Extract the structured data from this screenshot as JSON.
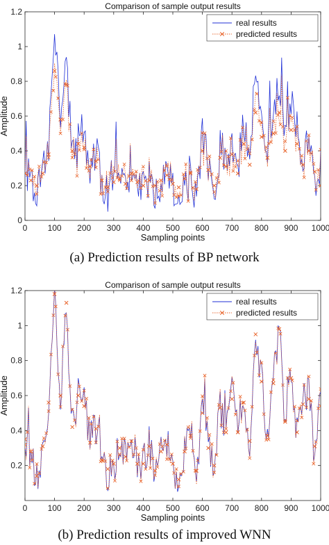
{
  "colors": {
    "real": "#1f2fd6",
    "predicted": "#e8632a",
    "axis": "#262626",
    "background": "#ffffff"
  },
  "chart_data": [
    {
      "type": "line",
      "title": "Comparison of sample output results",
      "xlabel": "Sampling points",
      "ylabel": "Amplitude",
      "xlim": [
        0,
        1000
      ],
      "ylim": [
        0,
        1.2
      ],
      "xticks": [
        0,
        100,
        200,
        300,
        400,
        500,
        600,
        700,
        800,
        900,
        1000
      ],
      "yticks": [
        0,
        0.2,
        0.4,
        0.6,
        0.8,
        1,
        1.2
      ],
      "grid": false,
      "legend_position": "top-right",
      "caption": "(a)  Prediction results of BP network",
      "series": [
        {
          "name": "real results",
          "style": "solid line",
          "color": "#1f2fd6",
          "x": [
            0,
            20,
            40,
            60,
            80,
            100,
            120,
            140,
            160,
            180,
            200,
            220,
            240,
            260,
            280,
            300,
            320,
            340,
            360,
            380,
            400,
            420,
            440,
            460,
            480,
            500,
            520,
            540,
            560,
            580,
            600,
            620,
            640,
            660,
            680,
            700,
            720,
            740,
            760,
            780,
            800,
            820,
            840,
            860,
            880,
            900,
            920,
            940,
            960,
            980,
            1000
          ],
          "y": [
            0.3,
            0.22,
            0.17,
            0.26,
            0.42,
            1.12,
            0.6,
            0.92,
            0.35,
            0.5,
            0.45,
            0.32,
            0.4,
            0.22,
            0.17,
            0.21,
            0.25,
            0.19,
            0.3,
            0.2,
            0.18,
            0.24,
            0.15,
            0.22,
            0.27,
            0.2,
            0.14,
            0.23,
            0.3,
            0.1,
            0.5,
            0.32,
            0.1,
            0.43,
            0.35,
            0.47,
            0.28,
            0.58,
            0.36,
            0.92,
            0.63,
            0.42,
            0.64,
            0.82,
            0.5,
            0.7,
            0.52,
            0.36,
            0.46,
            0.28,
            0.16
          ]
        },
        {
          "name": "predicted results",
          "style": "dotted line with x markers",
          "color": "#e8632a",
          "x": [
            0,
            20,
            40,
            60,
            80,
            100,
            120,
            140,
            160,
            180,
            200,
            220,
            240,
            260,
            280,
            300,
            320,
            340,
            360,
            380,
            400,
            420,
            440,
            460,
            480,
            500,
            520,
            540,
            560,
            580,
            600,
            620,
            640,
            660,
            680,
            700,
            720,
            740,
            760,
            780,
            800,
            820,
            840,
            860,
            880,
            900,
            920,
            940,
            960,
            980,
            1000
          ],
          "y": [
            0.27,
            0.23,
            0.2,
            0.27,
            0.38,
            0.86,
            0.58,
            0.78,
            0.4,
            0.44,
            0.42,
            0.31,
            0.34,
            0.23,
            0.19,
            0.22,
            0.24,
            0.21,
            0.27,
            0.22,
            0.2,
            0.23,
            0.2,
            0.23,
            0.26,
            0.21,
            0.19,
            0.24,
            0.27,
            0.18,
            0.4,
            0.29,
            0.2,
            0.36,
            0.31,
            0.38,
            0.27,
            0.44,
            0.32,
            0.62,
            0.48,
            0.36,
            0.5,
            0.62,
            0.4,
            0.52,
            0.44,
            0.32,
            0.4,
            0.28,
            0.2
          ]
        }
      ]
    },
    {
      "type": "line",
      "title": "Comparison of sample output results",
      "xlabel": "Sampling points",
      "ylabel": "Amplitude",
      "xlim": [
        0,
        1000
      ],
      "ylim": [
        0,
        1.2
      ],
      "xticks": [
        0,
        100,
        200,
        300,
        400,
        500,
        600,
        700,
        800,
        900,
        1000
      ],
      "yticks": [
        0.2,
        0.4,
        0.6,
        0.8,
        1,
        1.2
      ],
      "grid": false,
      "legend_position": "top-right",
      "caption": "(b)  Prediction results of improved WNN",
      "series": [
        {
          "name": "real results",
          "style": "solid line",
          "color": "#1f2fd6",
          "x": [
            0,
            20,
            40,
            60,
            80,
            100,
            120,
            140,
            160,
            180,
            200,
            220,
            240,
            260,
            280,
            300,
            320,
            340,
            360,
            380,
            400,
            420,
            440,
            460,
            480,
            500,
            520,
            540,
            560,
            580,
            600,
            620,
            640,
            660,
            680,
            700,
            720,
            740,
            760,
            780,
            800,
            820,
            840,
            860,
            880,
            900,
            920,
            940,
            960,
            980,
            1000
          ],
          "y": [
            0.36,
            0.28,
            0.12,
            0.3,
            0.58,
            1.16,
            0.6,
            1.12,
            0.42,
            0.62,
            0.55,
            0.33,
            0.42,
            0.22,
            0.16,
            0.2,
            0.3,
            0.25,
            0.35,
            0.2,
            0.2,
            0.32,
            0.15,
            0.28,
            0.33,
            0.2,
            0.08,
            0.28,
            0.38,
            0.14,
            0.52,
            0.3,
            0.18,
            0.55,
            0.4,
            0.6,
            0.4,
            0.58,
            0.34,
            0.94,
            0.7,
            0.36,
            0.68,
            0.98,
            0.44,
            0.72,
            0.38,
            0.56,
            0.6,
            0.3,
            0.56
          ]
        },
        {
          "name": "predicted results",
          "style": "dotted line with x markers",
          "color": "#e8632a",
          "x": [
            0,
            20,
            40,
            60,
            80,
            100,
            120,
            140,
            160,
            180,
            200,
            220,
            240,
            260,
            280,
            300,
            320,
            340,
            360,
            380,
            400,
            420,
            440,
            460,
            480,
            500,
            520,
            540,
            560,
            580,
            600,
            620,
            640,
            660,
            680,
            700,
            720,
            740,
            760,
            780,
            800,
            820,
            840,
            860,
            880,
            900,
            920,
            940,
            960,
            980,
            1000
          ],
          "y": [
            0.35,
            0.28,
            0.14,
            0.31,
            0.56,
            1.18,
            0.6,
            1.13,
            0.42,
            0.6,
            0.54,
            0.33,
            0.41,
            0.23,
            0.18,
            0.21,
            0.3,
            0.25,
            0.34,
            0.21,
            0.21,
            0.31,
            0.17,
            0.28,
            0.32,
            0.21,
            0.12,
            0.28,
            0.37,
            0.17,
            0.5,
            0.3,
            0.2,
            0.53,
            0.39,
            0.58,
            0.39,
            0.56,
            0.34,
            0.95,
            0.68,
            0.37,
            0.67,
            0.98,
            0.45,
            0.7,
            0.39,
            0.55,
            0.58,
            0.31,
            0.54
          ]
        }
      ]
    }
  ]
}
